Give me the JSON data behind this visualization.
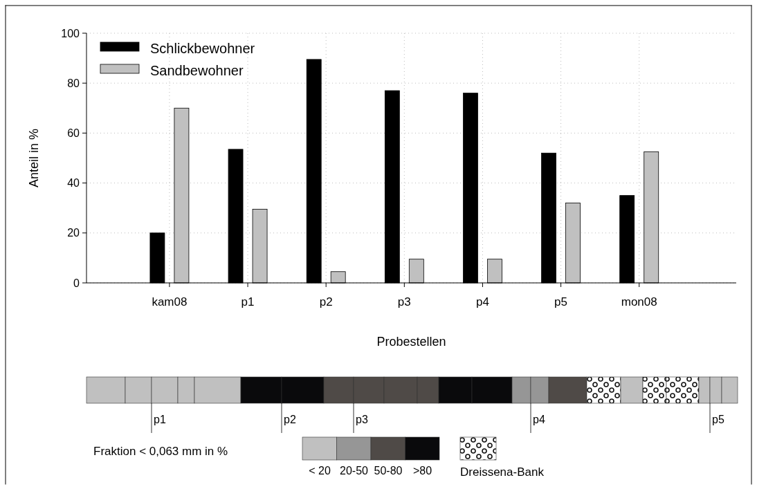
{
  "chart_data": [
    {
      "type": "bar",
      "xlabel": "Probestellen",
      "ylabel": "Anteil in %",
      "categories": [
        "kam08",
        "p1",
        "p2",
        "p3",
        "p4",
        "p5",
        "mon08"
      ],
      "series": [
        {
          "name": "Schlickbewohner",
          "color": "#000000",
          "values": [
            20,
            53.5,
            89.5,
            77,
            76,
            52,
            35
          ]
        },
        {
          "name": "Sandbewohner",
          "color": "#c0c0c0",
          "values": [
            70,
            29.5,
            4.5,
            9.5,
            9.5,
            32,
            52.5
          ]
        }
      ],
      "ylim": [
        0,
        100
      ],
      "yticks": [
        0,
        20,
        40,
        60,
        80,
        100
      ],
      "grid": true,
      "legend": "top left"
    },
    {
      "type": "other",
      "annotations": [
        "p1",
        "p2",
        "p3",
        "p4",
        "p5",
        "Fraktion < 0,063 mm in %",
        "< 20",
        "20-50",
        "50-80",
        ">80",
        "Dreissena-Bank"
      ]
    }
  ]
}
